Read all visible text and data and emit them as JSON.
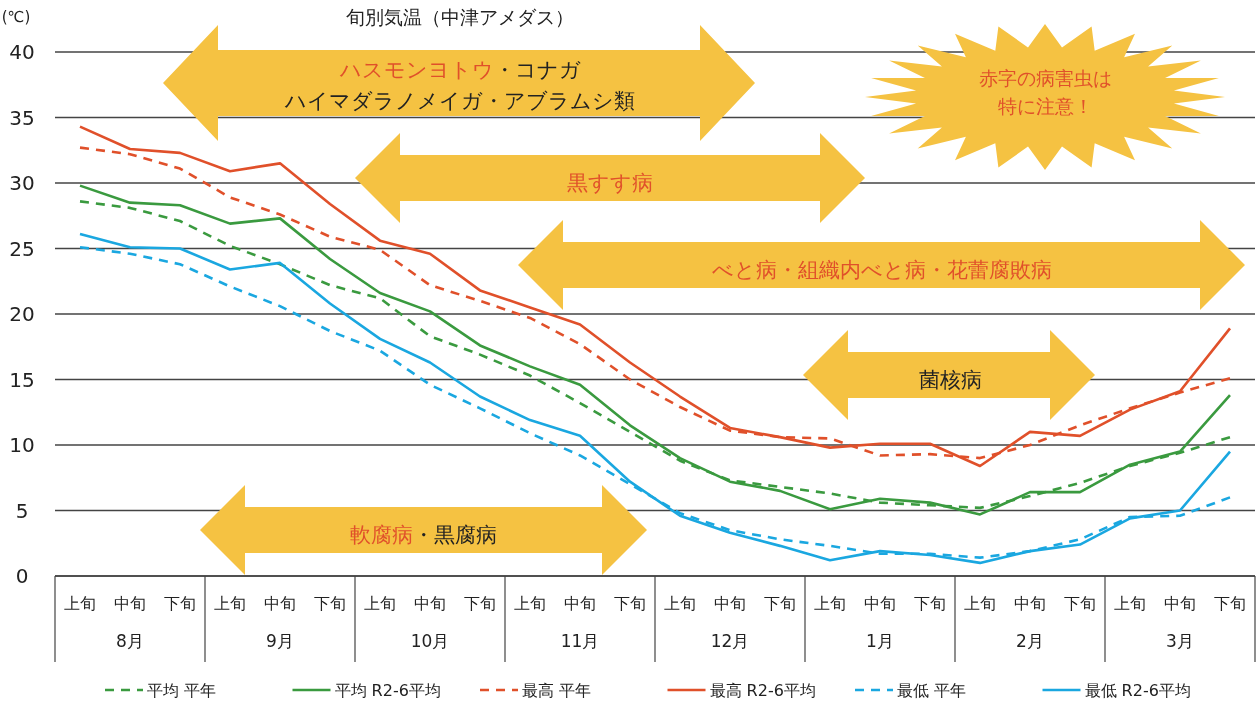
{
  "chart_data": {
    "type": "line",
    "title": "旬別気温（中津アメダス）",
    "ylabel": "(℃)",
    "categories": [
      "上旬",
      "中旬",
      "下旬",
      "上旬",
      "中旬",
      "下旬",
      "上旬",
      "中旬",
      "下旬",
      "上旬",
      "中旬",
      "下旬",
      "上旬",
      "中旬",
      "下旬",
      "上旬",
      "中旬",
      "下旬",
      "上旬",
      "中旬",
      "下旬",
      "上旬",
      "中旬",
      "下旬"
    ],
    "ylim": [
      0,
      40
    ],
    "yticks": [
      0,
      5,
      10,
      15,
      20,
      25,
      30,
      35,
      40
    ],
    "grid": "y",
    "legend": "bottom",
    "marker": "none",
    "series": [
      {
        "name": "平均 平年",
        "color": "#3a9a3f",
        "line_style": "dashed",
        "values": [
          28.6,
          28.1,
          27.1,
          25.2,
          23.8,
          22.2,
          21.2,
          18.3,
          16.9,
          15.3,
          13.2,
          11.0,
          8.8,
          7.3,
          6.8,
          6.3,
          5.6,
          5.4,
          5.2,
          6.1,
          7.1,
          8.4,
          9.4,
          10.6
        ]
      },
      {
        "name": "平均 R2-6平均",
        "color": "#3a9a3f",
        "line_style": "solid",
        "values": [
          29.8,
          28.5,
          28.3,
          26.9,
          27.3,
          24.2,
          21.6,
          20.2,
          17.6,
          16.0,
          14.6,
          11.5,
          9.0,
          7.2,
          6.5,
          5.1,
          5.9,
          5.6,
          4.7,
          6.4,
          6.4,
          8.5,
          9.5,
          13.8
        ]
      },
      {
        "name": "最高 平年",
        "color": "#e0502a",
        "line_style": "dashed",
        "values": [
          32.7,
          32.2,
          31.1,
          28.9,
          27.6,
          25.9,
          24.9,
          22.2,
          21.0,
          19.7,
          17.7,
          15.0,
          12.9,
          11.1,
          10.6,
          10.5,
          9.2,
          9.3,
          9.0,
          10.0,
          11.5,
          12.8,
          14.0,
          15.1
        ]
      },
      {
        "name": "最高 R2-6平均",
        "color": "#e0502a",
        "line_style": "solid",
        "values": [
          34.3,
          32.6,
          32.3,
          30.9,
          31.5,
          28.4,
          25.6,
          24.6,
          21.8,
          20.5,
          19.2,
          16.3,
          13.7,
          11.3,
          10.6,
          9.8,
          10.1,
          10.1,
          8.4,
          11.0,
          10.7,
          12.7,
          14.1,
          18.9
        ]
      },
      {
        "name": "最低 平年",
        "color": "#1aa7e0",
        "line_style": "dashed",
        "values": [
          25.1,
          24.6,
          23.8,
          22.1,
          20.6,
          18.7,
          17.2,
          14.6,
          12.8,
          10.9,
          9.2,
          7.0,
          4.8,
          3.5,
          2.8,
          2.3,
          1.7,
          1.7,
          1.4,
          1.9,
          2.8,
          4.5,
          4.6,
          6.0
        ]
      },
      {
        "name": "最低 R2-6平均",
        "color": "#1aa7e0",
        "line_style": "solid",
        "values": [
          26.1,
          25.1,
          25.0,
          23.4,
          23.9,
          20.8,
          18.1,
          16.3,
          13.7,
          11.9,
          10.7,
          7.2,
          4.6,
          3.3,
          2.3,
          1.2,
          1.9,
          1.6,
          1.0,
          1.9,
          2.4,
          4.4,
          5.0,
          9.5
        ]
      }
    ],
    "annotations": [
      "**ハスモンヨトウ**・コナガ",
      "ハイマダラノメイガ・アブラムシ類",
      "黒すす病",
      "べと病・組織内べと病・花蕾腐敗病",
      "菌核病",
      "**軟腐病**・黒腐病",
      "赤字の病害虫は特に注意！",
      "8月",
      "9月",
      "10月",
      "11月",
      "12月",
      "1月",
      "2月",
      "3月"
    ]
  }
}
